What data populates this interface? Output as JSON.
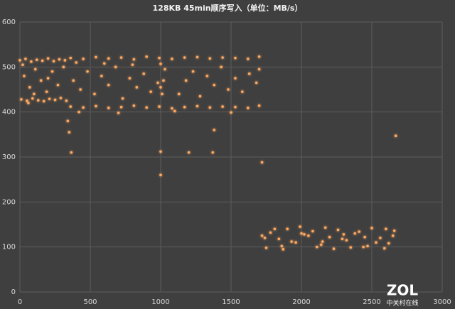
{
  "chart_data": {
    "type": "scatter",
    "title": "128KB 45min顺序写入（单位：MB/s）",
    "xlim": [
      0,
      3000
    ],
    "xticks": [
      0,
      500,
      1000,
      1500,
      2000,
      2500,
      3000
    ],
    "ylim": [
      0,
      600
    ],
    "yticks": [
      0,
      100,
      200,
      300,
      400,
      500,
      600
    ],
    "grid": true,
    "series": [
      {
        "color": "#ffa860",
        "x": [
          0,
          40,
          80,
          120,
          160,
          200,
          240,
          280,
          320,
          20,
          10,
          50,
          90,
          130,
          170,
          210,
          250,
          290,
          330,
          60,
          30,
          70,
          110,
          150,
          190,
          230,
          270,
          310,
          100,
          200,
          360,
          450,
          540,
          630,
          720,
          810,
          900,
          990,
          1080,
          1170,
          1260,
          1350,
          1440,
          1530,
          1620,
          1700,
          400,
          600,
          800,
          1000,
          360,
          450,
          540,
          630,
          720,
          810,
          900,
          990,
          1080,
          1170,
          1260,
          1350,
          1440,
          1530,
          1620,
          1700,
          420,
          700,
          1100,
          1500,
          380,
          430,
          480,
          530,
          580,
          630,
          680,
          730,
          780,
          830,
          880,
          930,
          980,
          1030,
          1130,
          1180,
          1230,
          1280,
          1330,
          1380,
          1430,
          1480,
          1530,
          1580,
          1630,
          1680,
          1000,
          1010,
          1020,
          1700,
          350,
          365,
          1000,
          1000,
          1200,
          1370,
          1380,
          1720,
          2670,
          340,
          1720,
          1780,
          1840,
          1900,
          1960,
          2020,
          2080,
          2140,
          2200,
          2260,
          2320,
          2380,
          2440,
          2500,
          2560,
          2620,
          2660,
          1750,
          1870,
          1990,
          2110,
          2230,
          2350,
          2470,
          2590,
          1810,
          1930,
          2050,
          2170,
          2290,
          2410,
          2530,
          2650,
          1740,
          2000,
          2300,
          2600,
          1860,
          2150,
          2450
        ],
        "values": [
          515,
          518,
          512,
          516,
          514,
          519,
          513,
          517,
          515,
          505,
          428,
          425,
          430,
          426,
          424,
          429,
          427,
          431,
          425,
          420,
          480,
          455,
          495,
          470,
          445,
          490,
          460,
          500,
          440,
          475,
          520,
          518,
          522,
          519,
          521,
          517,
          523,
          520,
          518,
          521,
          522,
          519,
          521,
          520,
          518,
          523,
          510,
          508,
          505,
          507,
          412,
          410,
          413,
          409,
          411,
          414,
          410,
          412,
          408,
          411,
          413,
          410,
          412,
          411,
          409,
          414,
          400,
          398,
          402,
          399,
          470,
          450,
          490,
          440,
          480,
          460,
          500,
          430,
          475,
          455,
          485,
          445,
          465,
          495,
          440,
          470,
          490,
          435,
          480,
          460,
          500,
          450,
          475,
          445,
          485,
          465,
          455,
          440,
          470,
          495,
          355,
          310,
          312,
          260,
          310,
          310,
          360,
          288,
          347,
          380,
          125,
          132,
          118,
          140,
          110,
          128,
          135,
          105,
          122,
          138,
          115,
          130,
          100,
          142,
          120,
          108,
          136,
          98,
          95,
          145,
          100,
          96,
          99,
          102,
          97,
          140,
          112,
          125,
          143,
          118,
          134,
          110,
          125,
          120,
          130,
          128,
          140,
          102,
          112,
          122
        ]
      }
    ]
  },
  "watermark": {
    "logo": "ZOL",
    "text": "中关村在线"
  }
}
